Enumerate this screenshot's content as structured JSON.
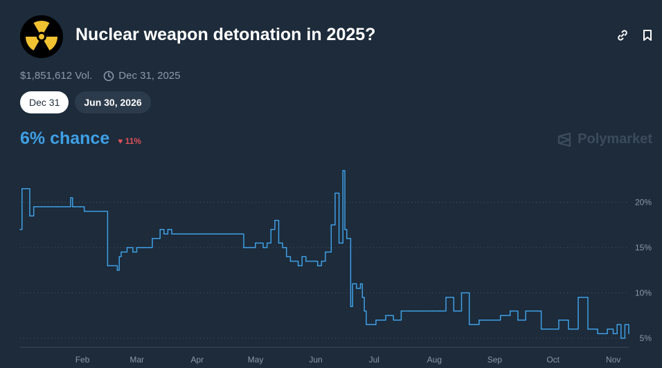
{
  "header": {
    "title": "Nuclear weapon detonation in 2025?",
    "logo_icon": "radiation-icon",
    "link_icon": "link-icon",
    "bookmark_icon": "bookmark-icon"
  },
  "meta": {
    "volume": "$1,851,612 Vol.",
    "end_date": "Dec 31, 2025",
    "clock_icon": "clock-icon"
  },
  "tabs": [
    {
      "label": "Dec 31",
      "active": true
    },
    {
      "label": "Jun 30, 2026",
      "active": false
    }
  ],
  "summary": {
    "chance": "6% chance",
    "change": "11%",
    "change_direction": "down"
  },
  "brand": "Polymarket",
  "colors": {
    "background": "#1d2b3a",
    "line": "#3fa0e6",
    "negative": "#e0505a",
    "muted_text": "#8b9aab"
  },
  "chart_data": {
    "type": "line",
    "title": "",
    "xlabel": "",
    "ylabel": "",
    "x_ticks": [
      "Feb",
      "Mar",
      "Apr",
      "May",
      "Jun",
      "Jul",
      "Aug",
      "Sep",
      "Oct",
      "Nov"
    ],
    "y_ticks": [
      "5%",
      "10%",
      "15%",
      "20%"
    ],
    "ylim": [
      4,
      24
    ],
    "grid": "horizontal dotted",
    "series": [
      {
        "x": [
          "Jan 1",
          "Jan 2",
          "Jan 5",
          "Jan 6",
          "Jan 8",
          "Jan 20",
          "Jan 27",
          "Jan 28",
          "Jan 29",
          "Feb 1",
          "Feb 3",
          "Feb 6",
          "Feb 12",
          "Feb 15",
          "Feb 20",
          "Feb 21",
          "Feb 22",
          "Feb 25",
          "Feb 28",
          "Mar 2",
          "Mar 10",
          "Mar 12",
          "Mar 14",
          "Mar 16",
          "Mar 18",
          "Mar 20",
          "Mar 22",
          "Mar 26",
          "Apr 1",
          "Apr 6",
          "Apr 10",
          "Apr 14",
          "Apr 20",
          "Apr 26",
          "May 2",
          "May 6",
          "May 8",
          "May 10",
          "May 12",
          "May 14",
          "May 15",
          "May 16",
          "May 18",
          "May 20",
          "May 24",
          "May 26",
          "May 28",
          "Jun 1",
          "Jun 3",
          "Jun 5",
          "Jun 7",
          "Jun 10",
          "Jun 12",
          "Jun 14",
          "Jun 16",
          "Jun 17",
          "Jun 18",
          "Jun 20",
          "Jun 21",
          "Jun 22",
          "Jun 23",
          "Jun 25",
          "Jun 26",
          "Jun 27",
          "Jun 28",
          "Jul 1",
          "Jul 3",
          "Jul 5",
          "Jul 8",
          "Jul 12",
          "Jul 16",
          "Jul 20",
          "Jul 25",
          "Aug 1",
          "Aug 5",
          "Aug 8",
          "Aug 12",
          "Aug 16",
          "Aug 20",
          "Aug 25",
          "Sep 1",
          "Sep 5",
          "Sep 10",
          "Sep 14",
          "Sep 18",
          "Sep 22",
          "Sep 26",
          "Oct 1",
          "Oct 5",
          "Oct 10",
          "Oct 15",
          "Oct 20",
          "Oct 25",
          "Oct 30",
          "Nov 2",
          "Nov 4",
          "Nov 6",
          "Nov 8",
          "Nov 10"
        ],
        "y": [
          17,
          21.5,
          21.5,
          18.5,
          19.5,
          19.5,
          20.5,
          19.5,
          19.5,
          19.5,
          19,
          19,
          19,
          13,
          12.5,
          14,
          14.5,
          15,
          14.5,
          15,
          16,
          16,
          17,
          16.5,
          17,
          16.5,
          16.5,
          16.5,
          16.5,
          16.5,
          16.5,
          16.5,
          16.5,
          15,
          15.5,
          15,
          15.5,
          17,
          18,
          15.5,
          15.5,
          15,
          14,
          13.5,
          13,
          14,
          13.5,
          13.5,
          13,
          13.5,
          14.5,
          17.5,
          21,
          15.5,
          23.5,
          17,
          16,
          8.5,
          11,
          11,
          10.5,
          11,
          9.5,
          8,
          6.5,
          6.5,
          7,
          7,
          7.5,
          7,
          8,
          8,
          8,
          8,
          8,
          9.5,
          8,
          10,
          6.5,
          7,
          7,
          7.5,
          8,
          7,
          8,
          8,
          6,
          6,
          7,
          6,
          9.5,
          6,
          5.5,
          6,
          5.5,
          6.5,
          5,
          6.5,
          5.5
        ]
      }
    ]
  }
}
